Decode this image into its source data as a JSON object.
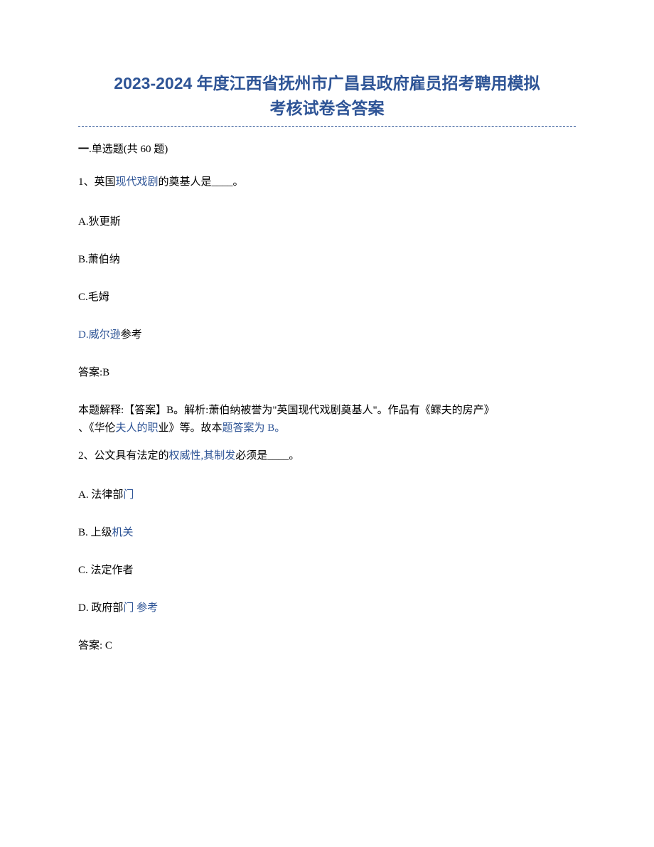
{
  "title": {
    "line1": "2023-2024 年度江西省抚州市广昌县政府雇员招考聘用模拟",
    "line2": "考核试卷含答案",
    "color": "#2e5496"
  },
  "divider_color": "#2e5496",
  "section": {
    "prefix": "一",
    "label": ".单选题(共 60 题)"
  },
  "q1": {
    "number": "1、",
    "text_part1": "英国",
    "text_part2": "现代戏剧",
    "text_part3": "的奠基人是____。",
    "options": {
      "a": "A.狄更斯",
      "b": "B.萧伯纳",
      "c": "C.毛姆",
      "d_part1": "D.威尔逊",
      "d_part2": "参考"
    },
    "answer_label": "答案:B",
    "expl": {
      "p1": "本题解释:【答案】B。解析:萧伯纳被誉为\"英国现代戏剧奠基人\"。作品有《鳏夫的房产》",
      "p2a": "、《华伦",
      "p2b": "夫人的职",
      "p2c": "业》等。故本",
      "p2d": "题答案为 B。"
    }
  },
  "q2": {
    "number": "2、",
    "text_part1": "公文具有法定的",
    "text_part2": "权威性,其制发",
    "text_part3": "必须是____。",
    "options": {
      "a_part1": "A. 法律部",
      "a_part2": "门",
      "b_part1": "B. 上级",
      "b_part2": "机关",
      "c": "C. 法定作者",
      "d_part1": "D. 政府部",
      "d_part2": "门 参考"
    },
    "answer_label": "答案: C"
  }
}
